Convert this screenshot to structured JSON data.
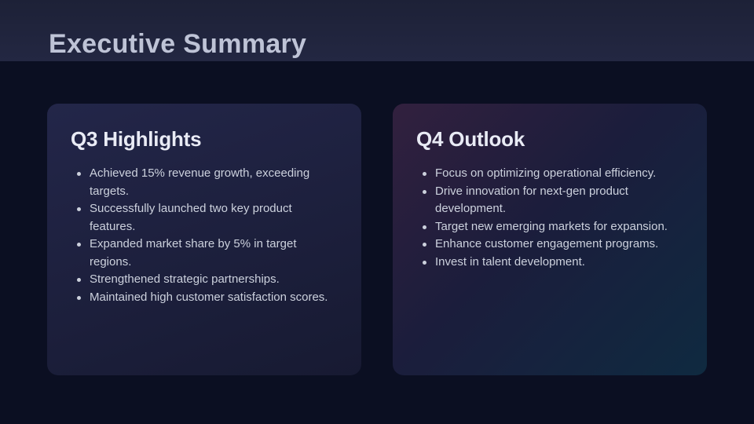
{
  "slide": {
    "title": "Executive Summary",
    "cards": [
      {
        "title": "Q3 Highlights",
        "bullets": [
          "Achieved 15% revenue growth, exceeding targets.",
          "Successfully launched two key product features.",
          "Expanded market share by 5% in target regions.",
          "Strengthened strategic partnerships.",
          "Maintained high customer satisfaction scores."
        ]
      },
      {
        "title": "Q4 Outlook",
        "bullets": [
          "Focus on optimizing operational efficiency.",
          "Drive innovation for next-gen product development.",
          "Target new emerging markets for expansion.",
          "Enhance customer engagement programs.",
          "Invest in talent development."
        ]
      }
    ]
  },
  "colors": {
    "page_background": "#0b0f22",
    "header_band": "#222641",
    "card_q3_background": "#1d2040",
    "card_q4_gradient_start": "#32203e",
    "card_q4_gradient_end": "#0f2a40",
    "page_title_text": "#bec3d6",
    "card_title_text": "#e9ebf5",
    "bullet_text": "#ccd1dd"
  }
}
